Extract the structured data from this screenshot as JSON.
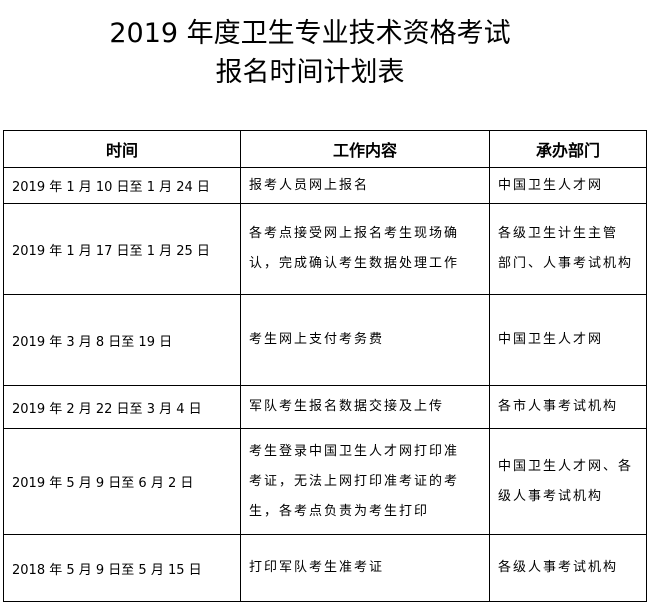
{
  "title": {
    "line1": "2019 年度卫生专业技术资格考试",
    "line2": "报名时间计划表"
  },
  "table": {
    "headers": [
      "时间",
      "工作内容",
      "承办部门"
    ],
    "rows": [
      {
        "time": "2019 年 1 月 10 日至 1 月 24 日",
        "content": [
          "报考人员网上报名"
        ],
        "dept": [
          "中国卫生人才网"
        ]
      },
      {
        "time": "2019 年 1 月 17 日至 1 月 25 日",
        "content": [
          "各考点接受网上报名考生现场确",
          "认，完成确认考生数据处理工作"
        ],
        "dept": [
          "各级卫生计生主管",
          "部门、人事考试机构"
        ]
      },
      {
        "time": "2019 年 3 月 8 日至 19 日",
        "content": [
          "考生网上支付考务费"
        ],
        "dept": [
          "中国卫生人才网"
        ]
      },
      {
        "time": "2019 年 2 月 22 日至 3 月 4 日",
        "content": [
          "军队考生报名数据交接及上传"
        ],
        "dept": [
          "各市人事考试机构"
        ]
      },
      {
        "time": "2019 年 5 月 9 日至 6 月 2 日",
        "content": [
          "考生登录中国卫生人才网打印准",
          "考证，无法上网打印准考证的考",
          "生，各考点负责为考生打印"
        ],
        "dept": [
          "中国卫生人才网、各",
          "级人事考试机构"
        ]
      },
      {
        "time": "2018 年 5 月 9 日至 5 月 15 日",
        "content": [
          "打印军队考生准考证"
        ],
        "dept": [
          "各级人事考试机构"
        ]
      }
    ]
  }
}
